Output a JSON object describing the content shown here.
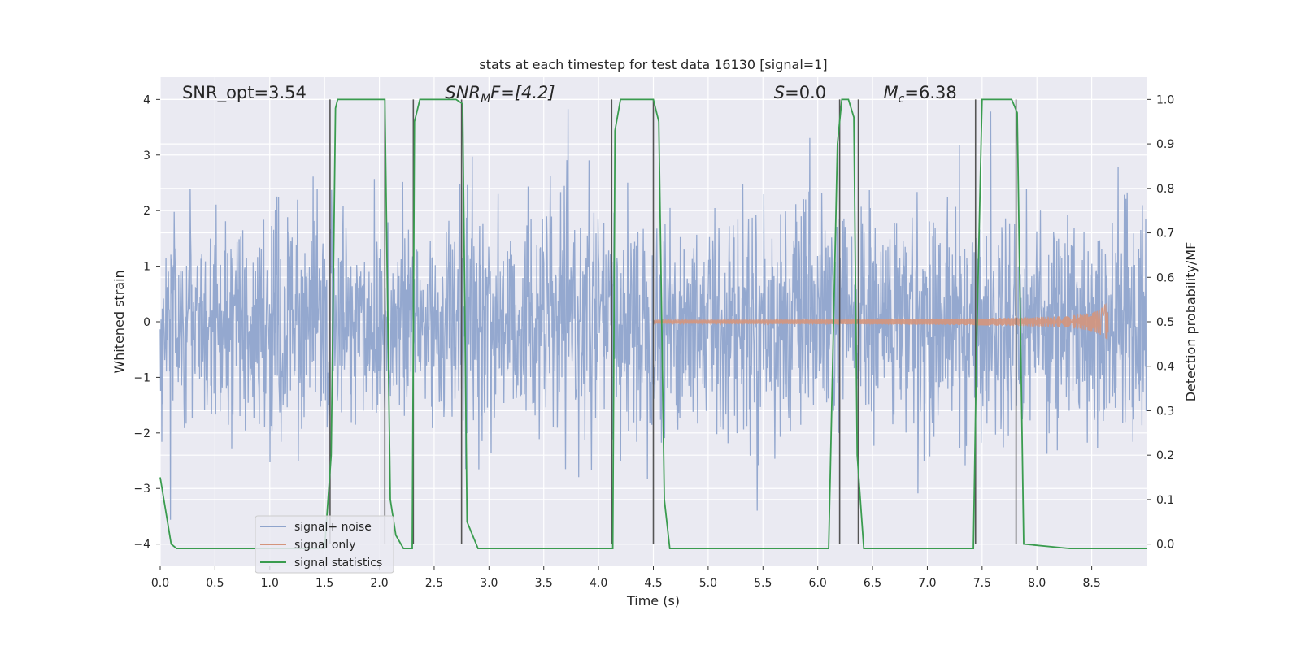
{
  "chart_data": {
    "type": "line",
    "title": "stats at each timestep for test data 16130 [signal=1]",
    "xlabel": "Time (s)",
    "ylabel": "Whitened strain",
    "ylabel_right": "Detection probability/MF",
    "xlim": [
      0.0,
      9.0
    ],
    "ylim": [
      -4.4,
      4.4
    ],
    "ylim_right": [
      -0.05,
      1.05
    ],
    "x_ticks": [
      0.0,
      0.5,
      1.0,
      1.5,
      2.0,
      2.5,
      3.0,
      3.5,
      4.0,
      4.5,
      5.0,
      5.5,
      6.0,
      6.5,
      7.0,
      7.5,
      8.0,
      8.5
    ],
    "x_tick_labels": [
      "0.0",
      "0.5",
      "1.0",
      "1.5",
      "2.0",
      "2.5",
      "3.0",
      "3.5",
      "4.0",
      "4.5",
      "5.0",
      "5.5",
      "6.0",
      "6.5",
      "7.0",
      "7.5",
      "8.0",
      "8.5"
    ],
    "y_ticks": [
      -4,
      -3,
      -2,
      -1,
      0,
      1,
      2,
      3,
      4
    ],
    "y_tick_labels": [
      "−4",
      "−3",
      "−2",
      "−1",
      "0",
      "1",
      "2",
      "3",
      "4"
    ],
    "y_ticks_right": [
      0.0,
      0.1,
      0.2,
      0.3,
      0.4,
      0.5,
      0.6,
      0.7,
      0.8,
      0.9,
      1.0
    ],
    "y_tick_labels_right": [
      "0.0",
      "0.1",
      "0.2",
      "0.3",
      "0.4",
      "0.5",
      "0.6",
      "0.7",
      "0.8",
      "0.9",
      "1.0"
    ],
    "grid": true,
    "legend_position": "lower-left",
    "annotations": {
      "snr_opt": "SNR_opt=3.54",
      "snr_mf_base": "SNR",
      "snr_mf_sub": "M",
      "snr_mf_rest": "F=[4.2]",
      "s_italic": "S",
      "s_value": "=0.0",
      "mc_base": "M",
      "mc_sub": "c",
      "mc_value": "=6.38"
    },
    "series": [
      {
        "name": "signal+ noise",
        "color": "#8fa4cc",
        "kind": "noise",
        "amplitude_std": 1.0,
        "max_abs": 3.9
      },
      {
        "name": "signal only",
        "color": "#d4957c",
        "kind": "chirp",
        "x_start": 4.5,
        "x_end": 8.65,
        "end_amplitude": 0.5
      },
      {
        "name": "signal statistics",
        "color": "#3a9c4f",
        "axis": "right",
        "x": [
          0.0,
          0.1,
          0.15,
          0.5,
          1.0,
          1.5,
          1.56,
          1.6,
          1.62,
          1.66,
          2.05,
          2.1,
          2.15,
          2.22,
          2.3,
          2.32,
          2.37,
          2.7,
          2.76,
          2.8,
          2.9,
          3.5,
          4.13,
          4.15,
          4.2,
          4.5,
          4.55,
          4.6,
          4.65,
          5.0,
          6.1,
          6.18,
          6.22,
          6.28,
          6.33,
          6.36,
          6.42,
          6.5,
          7.0,
          7.35,
          7.42,
          7.45,
          7.5,
          7.77,
          7.82,
          7.88,
          8.3,
          9.0
        ],
        "y": [
          0.15,
          0.0,
          -0.01,
          -0.01,
          -0.01,
          -0.01,
          0.2,
          0.98,
          1.0,
          1.0,
          1.0,
          0.1,
          0.02,
          -0.01,
          -0.01,
          0.95,
          1.0,
          1.0,
          0.99,
          0.05,
          -0.01,
          -0.01,
          -0.01,
          0.93,
          1.0,
          1.0,
          0.95,
          0.1,
          -0.01,
          -0.01,
          -0.01,
          0.9,
          1.0,
          1.0,
          0.96,
          0.2,
          -0.01,
          -0.01,
          -0.01,
          -0.01,
          -0.01,
          0.45,
          1.0,
          1.0,
          0.97,
          0.0,
          -0.01,
          -0.01
        ]
      }
    ],
    "detection_lines_x": [
      1.55,
      2.05,
      2.31,
      2.75,
      4.12,
      4.5,
      6.2,
      6.37,
      7.44,
      7.81
    ],
    "detection_line_color": "#555555"
  }
}
